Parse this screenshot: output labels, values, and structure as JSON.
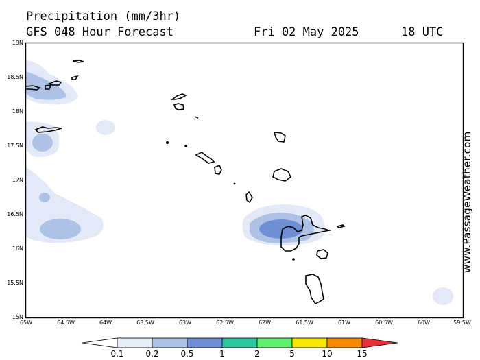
{
  "header": {
    "title": "Precipitation (mm/3hr)",
    "model": "GFS 048 Hour Forecast",
    "date": "Fri 02 May 2025",
    "time": "18 UTC"
  },
  "credit": "www.PassageWeather.com",
  "lat_labels": [
    "19N",
    "18.5N",
    "18N",
    "17.5N",
    "17N",
    "16.5N",
    "16N",
    "15.5N",
    "15N"
  ],
  "lon_labels": [
    "65W",
    "64.5W",
    "64W",
    "63.5W",
    "63W",
    "62.5W",
    "62W",
    "61.5W",
    "61W",
    "60.5W",
    "60W",
    "59.5W"
  ],
  "colorbar": {
    "labels": [
      "0.1",
      "0.2",
      "0.5",
      "1",
      "2",
      "5",
      "10",
      "15"
    ],
    "colors": [
      "#e6ecf7",
      "#aec2e6",
      "#6e8fd6",
      "#2ec4a0",
      "#5ef06c",
      "#f5e800",
      "#f58a00",
      "#e8303a"
    ]
  },
  "precip_colors": {
    "light": "#e3e9f6",
    "medium": "#aec2e6",
    "heavy": "#6e8fd6"
  }
}
